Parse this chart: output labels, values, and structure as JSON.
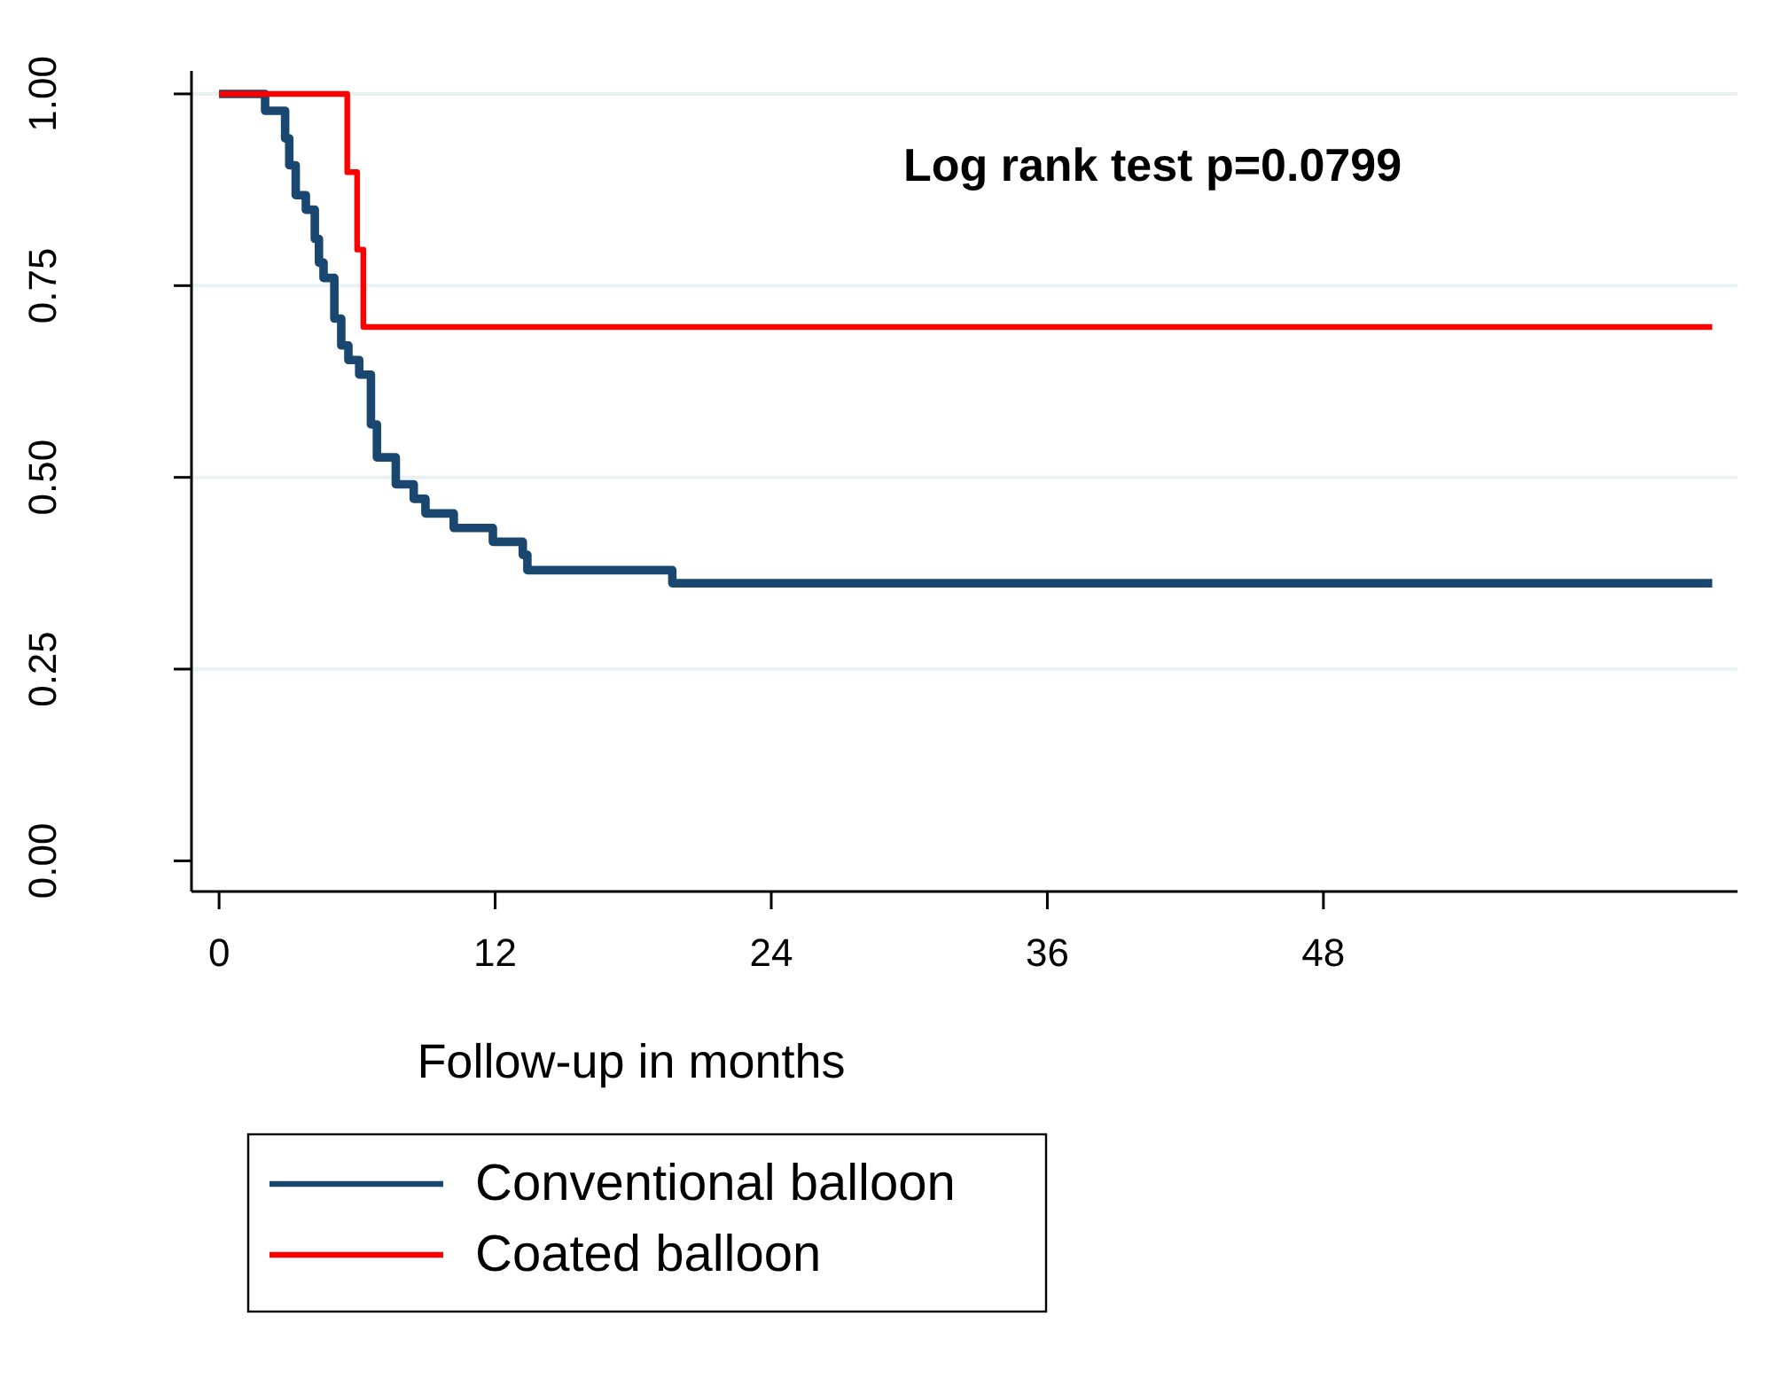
{
  "chart_data": {
    "type": "step",
    "xlabel": "Follow-up in months",
    "annotations": [
      "Log rank test p=0.0799"
    ],
    "xlim": [
      -1.2,
      66
    ],
    "xticks": [
      0,
      12,
      24,
      36,
      48
    ],
    "ylim": [
      -0.04,
      1.03
    ],
    "yticks": [
      {
        "value": 0,
        "label": "0.00"
      },
      {
        "value": 0.25,
        "label": "0.25"
      },
      {
        "value": 0.5,
        "label": "0.50"
      },
      {
        "value": 0.75,
        "label": "0.75"
      },
      {
        "value": 1,
        "label": "1.00"
      }
    ],
    "grid": "y",
    "legend": "bottom",
    "line_style": "solid",
    "marker": "none",
    "series": [
      {
        "name": "Conventional balloon",
        "color": "#1a476f",
        "x": [
          0,
          2.0,
          2.87,
          3.05,
          3.33,
          3.77,
          4.16,
          4.34,
          4.54,
          5.01,
          5.31,
          5.62,
          6.09,
          6.6,
          6.86,
          7.68,
          8.46,
          8.97,
          10.2,
          11.9,
          13.2,
          13.4,
          19.7,
          64.9
        ],
        "values": [
          1,
          0.978,
          0.942,
          0.907,
          0.868,
          0.849,
          0.811,
          0.78,
          0.76,
          0.707,
          0.672,
          0.653,
          0.634,
          0.569,
          0.526,
          0.491,
          0.472,
          0.453,
          0.434,
          0.416,
          0.399,
          0.379,
          0.362,
          0.362
        ]
      },
      {
        "name": "Coated balloon",
        "color": "#ff0000",
        "x": [
          0,
          5.57,
          6.0,
          6.27,
          64.9
        ],
        "values": [
          1,
          0.898,
          0.797,
          0.696,
          0.696
        ]
      }
    ]
  }
}
